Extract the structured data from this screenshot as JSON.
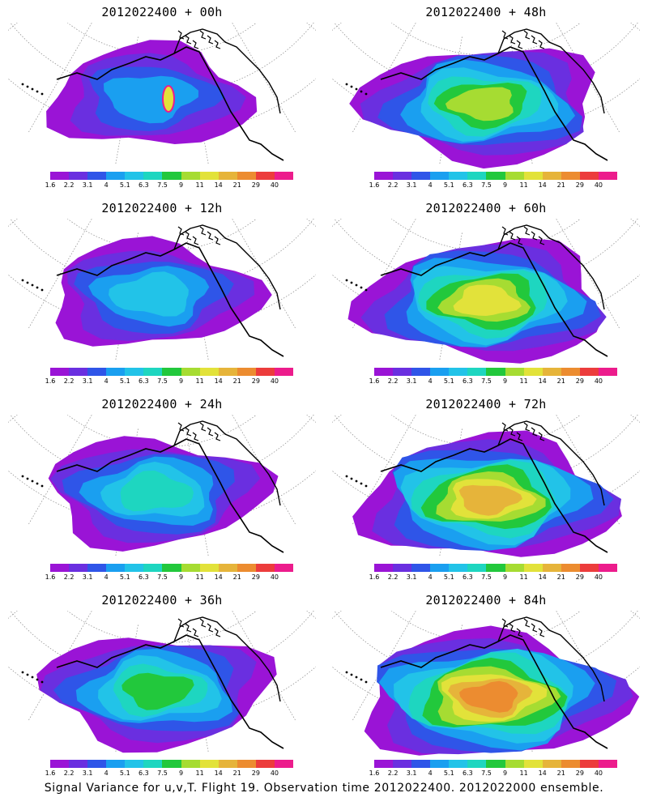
{
  "panels": [
    {
      "title": "2012022400 + 00h",
      "lead": 0
    },
    {
      "title": "2012022400 + 48h",
      "lead": 48
    },
    {
      "title": "2012022400 + 12h",
      "lead": 12
    },
    {
      "title": "2012022400 + 60h",
      "lead": 60
    },
    {
      "title": "2012022400 + 24h",
      "lead": 24
    },
    {
      "title": "2012022400 + 72h",
      "lead": 72
    },
    {
      "title": "2012022400 + 36h",
      "lead": 36
    },
    {
      "title": "2012022400 + 84h",
      "lead": 84
    }
  ],
  "colorbar": {
    "labels": [
      "1.6",
      "2.2",
      "3.1",
      "4",
      "5.1",
      "6.3",
      "7.5",
      "9",
      "11",
      "14",
      "21",
      "29",
      "40"
    ],
    "colors": [
      "#9a14d6",
      "#6a2fe0",
      "#2f55e8",
      "#1a9ff0",
      "#22c3e8",
      "#1ed6c0",
      "#22c83c",
      "#a6dc32",
      "#e2e23a",
      "#e6b43a",
      "#ec8c30",
      "#ec3c3c",
      "#ec1c8c"
    ]
  },
  "caption": "Signal Variance for u,v,T. Flight 19. Observation time 2012022400. 2012022000 ensemble."
}
